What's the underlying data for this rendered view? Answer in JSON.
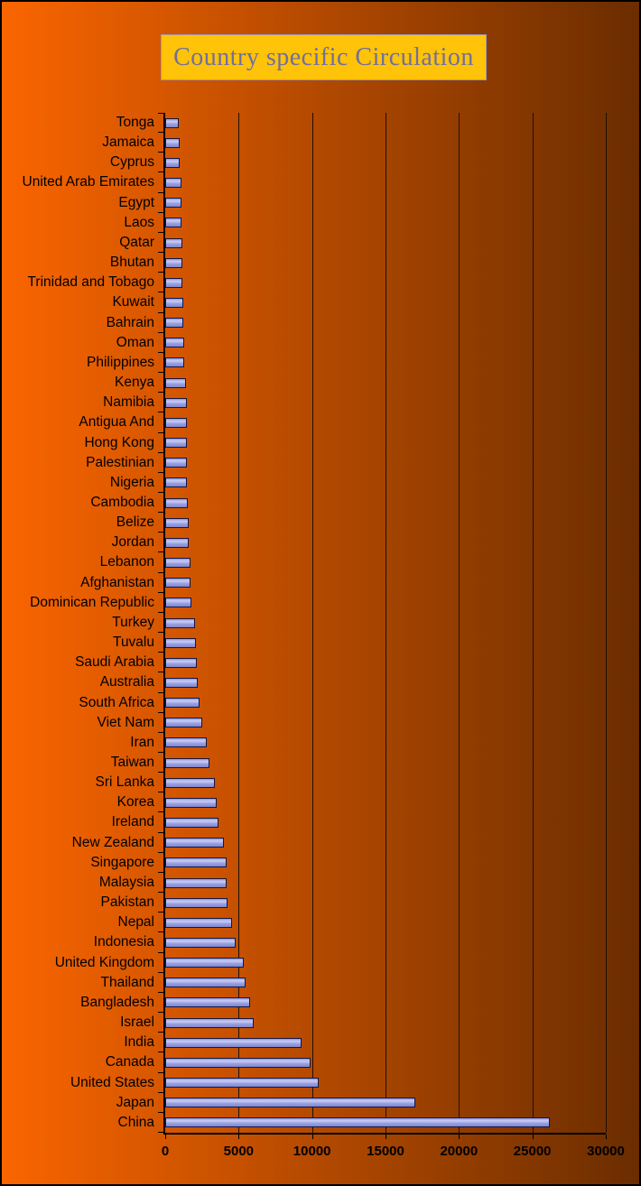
{
  "title": "Country specific Circulation",
  "colors": {
    "background_left": "#fa6500",
    "background_right": "#6b2d00",
    "title_background": "#ffc30a",
    "title_text": "#6f6f9f",
    "bar_fill": "#9aa0e0",
    "bar_border": "#16163f",
    "axis_color": "#000000",
    "label_color": "#000000"
  },
  "chart_data": {
    "type": "bar",
    "orientation": "horizontal",
    "title": "Country specific Circulation",
    "xlabel": "",
    "ylabel": "",
    "xlim": [
      0,
      30000
    ],
    "x_ticks": [
      0,
      5000,
      10000,
      15000,
      20000,
      25000,
      30000
    ],
    "grid": true,
    "legend": false,
    "categories": [
      "Tonga",
      "Jamaica",
      "Cyprus",
      "United Arab Emirates",
      "Egypt",
      "Laos",
      "Qatar",
      "Bhutan",
      "Trinidad and Tobago",
      "Kuwait",
      "Bahrain",
      "Oman",
      "Philippines",
      "Kenya",
      "Namibia",
      "Antigua And",
      "Hong Kong",
      "Palestinian",
      "Nigeria",
      "Cambodia",
      "Belize",
      "Jordan",
      "Lebanon",
      "Afghanistan",
      "Dominican Republic",
      "Turkey",
      "Tuvalu",
      "Saudi Arabia",
      "Australia",
      "South Africa",
      "Viet Nam",
      "Iran",
      "Taiwan",
      "Sri Lanka",
      "Korea",
      "Ireland",
      "New Zealand",
      "Singapore",
      "Malaysia",
      "Pakistan",
      "Nepal",
      "Indonesia",
      "United Kingdom",
      "Thailand",
      "Bangladesh",
      "Israel",
      "India",
      "Canada",
      "United States",
      "Japan",
      "China"
    ],
    "values": [
      950,
      980,
      1000,
      1100,
      1120,
      1120,
      1150,
      1170,
      1170,
      1230,
      1250,
      1270,
      1300,
      1400,
      1450,
      1450,
      1500,
      1500,
      1500,
      1550,
      1600,
      1600,
      1700,
      1750,
      1800,
      2000,
      2100,
      2150,
      2200,
      2350,
      2550,
      2800,
      3000,
      3400,
      3500,
      3650,
      4000,
      4200,
      4200,
      4250,
      4550,
      4800,
      5350,
      5500,
      5800,
      6000,
      9300,
      9900,
      10450,
      17000,
      26200
    ]
  }
}
